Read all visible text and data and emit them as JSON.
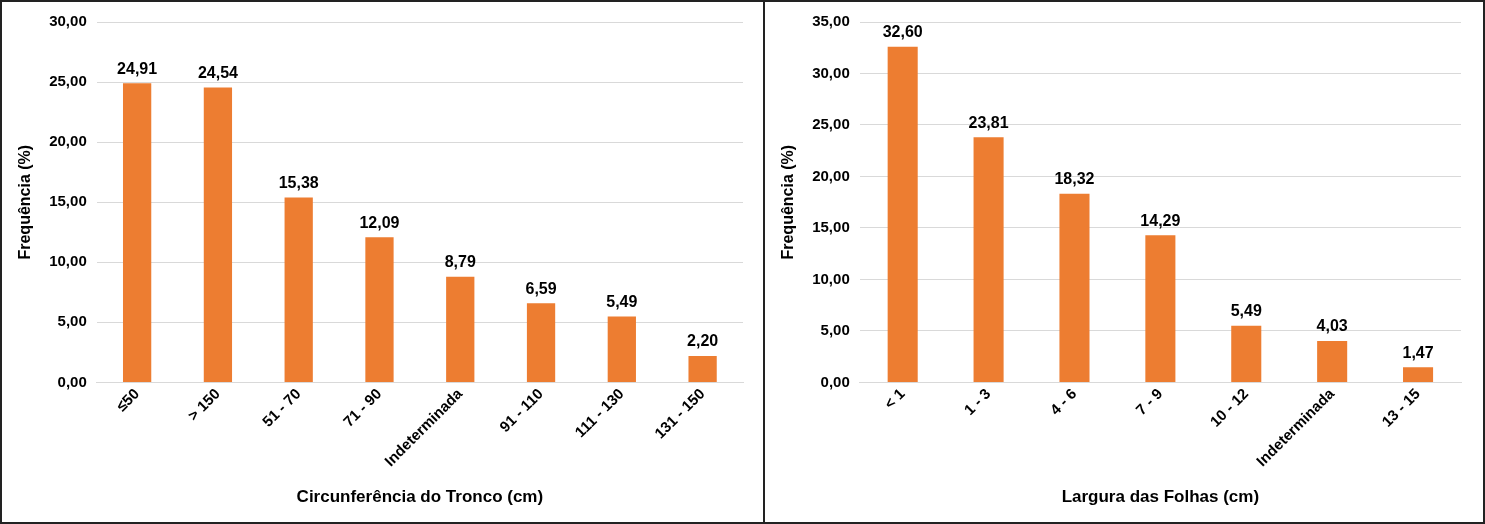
{
  "chart_data": [
    {
      "type": "bar",
      "xlabel": "Circunferência do Tronco (cm)",
      "ylabel": "Frequência (%)",
      "categories": [
        "≤50",
        "> 150",
        "51 - 70",
        "71 - 90",
        "Indeterminada",
        "91 - 110",
        "111 - 130",
        "131 - 150"
      ],
      "values": [
        24.91,
        24.54,
        15.38,
        12.09,
        8.79,
        6.59,
        5.49,
        2.2
      ],
      "value_labels": [
        "24,91",
        "24,54",
        "15,38",
        "12,09",
        "8,79",
        "6,59",
        "5,49",
        "2,20"
      ],
      "color": "#ed7d31",
      "ylim": [
        0,
        30
      ],
      "yticks": [
        {
          "value": 0,
          "label": "0,00"
        },
        {
          "value": 5,
          "label": "5,00"
        },
        {
          "value": 10,
          "label": "10,00"
        },
        {
          "value": 15,
          "label": "15,00"
        },
        {
          "value": 20,
          "label": "20,00"
        },
        {
          "value": 25,
          "label": "25,00"
        },
        {
          "value": 30,
          "label": "30,00"
        }
      ],
      "grid": "y",
      "legend": false
    },
    {
      "type": "bar",
      "xlabel": "Largura das Folhas (cm)",
      "ylabel": "Frequência (%)",
      "categories": [
        "< 1",
        "1 - 3",
        "4 - 6",
        "7 - 9",
        "10 - 12",
        "Indeterminada",
        "13 - 15"
      ],
      "values": [
        32.6,
        23.81,
        18.32,
        14.29,
        5.49,
        4.03,
        1.47
      ],
      "value_labels": [
        "32,60",
        "23,81",
        "18,32",
        "14,29",
        "5,49",
        "4,03",
        "1,47"
      ],
      "color": "#ed7d31",
      "ylim": [
        0,
        35
      ],
      "yticks": [
        {
          "value": 0,
          "label": "0,00"
        },
        {
          "value": 5,
          "label": "5,00"
        },
        {
          "value": 10,
          "label": "10,00"
        },
        {
          "value": 15,
          "label": "15,00"
        },
        {
          "value": 20,
          "label": "20,00"
        },
        {
          "value": 25,
          "label": "25,00"
        },
        {
          "value": 30,
          "label": "30,00"
        },
        {
          "value": 35,
          "label": "35,00"
        }
      ],
      "grid": "y",
      "legend": false
    }
  ]
}
